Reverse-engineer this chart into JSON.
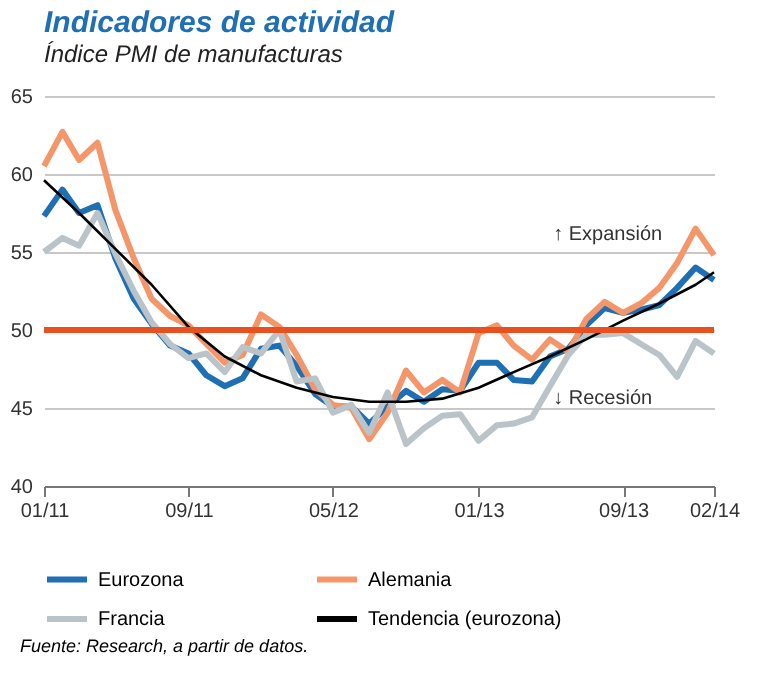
{
  "chart_data": {
    "type": "line",
    "title": "Indicadores de actividad",
    "subtitle": "Índice PMI de manufacturas",
    "x": [
      "2011-01",
      "2011-02",
      "2011-03",
      "2011-04",
      "2011-05",
      "2011-06",
      "2011-07",
      "2011-08",
      "2011-09",
      "2011-10",
      "2011-11",
      "2011-12",
      "2012-01",
      "2012-02",
      "2012-03",
      "2012-04",
      "2012-05",
      "2012-06",
      "2012-07",
      "2012-08",
      "2012-09",
      "2012-10",
      "2012-11",
      "2012-12",
      "2013-01",
      "2013-02",
      "2013-03",
      "2013-04",
      "2013-05",
      "2013-06",
      "2013-07",
      "2013-08",
      "2013-09",
      "2013-10",
      "2013-11",
      "2013-12",
      "2014-01",
      "2014-02"
    ],
    "series": [
      {
        "name": "Eurozona",
        "color": "#1f6fb5",
        "values": [
          57.3,
          59.0,
          57.5,
          58.0,
          54.6,
          52.0,
          50.4,
          49.0,
          48.5,
          47.1,
          46.4,
          46.9,
          48.8,
          49.0,
          47.7,
          45.9,
          45.1,
          45.1,
          44.0,
          45.1,
          46.1,
          45.4,
          46.2,
          46.1,
          47.9,
          47.9,
          46.8,
          46.7,
          48.3,
          48.8,
          50.3,
          51.4,
          51.1,
          51.3,
          51.6,
          52.7,
          54.0,
          53.2
        ]
      },
      {
        "name": "Alemania",
        "color": "#f4956a",
        "values": [
          60.5,
          62.7,
          60.9,
          62.0,
          57.7,
          54.6,
          52.0,
          50.9,
          50.3,
          49.1,
          47.9,
          48.4,
          51.0,
          50.2,
          48.4,
          46.2,
          45.2,
          45.0,
          43.0,
          44.7,
          47.4,
          46.0,
          46.8,
          46.0,
          49.8,
          50.3,
          49.0,
          48.1,
          49.4,
          48.6,
          50.7,
          51.8,
          51.1,
          51.7,
          52.7,
          54.3,
          56.5,
          54.8
        ]
      },
      {
        "name": "Francia",
        "color": "#b9c3c8",
        "values": [
          55.0,
          55.9,
          55.4,
          57.5,
          54.9,
          52.5,
          50.5,
          49.1,
          48.2,
          48.5,
          47.3,
          48.9,
          48.5,
          50.0,
          46.7,
          46.9,
          44.7,
          45.2,
          43.4,
          46.0,
          42.7,
          43.7,
          44.5,
          44.6,
          42.9,
          43.9,
          44.0,
          44.4,
          46.4,
          48.4,
          49.7,
          49.7,
          49.8,
          49.1,
          48.4,
          47.0,
          49.3,
          48.5
        ]
      },
      {
        "name": "Tendencia (eurozona)",
        "color": "#000000",
        "x": [
          "2011-01",
          "2011-03",
          "2011-05",
          "2011-07",
          "2011-09",
          "2011-11",
          "2012-01",
          "2012-03",
          "2012-05",
          "2012-07",
          "2012-09",
          "2012-11",
          "2013-01",
          "2013-03",
          "2013-05",
          "2013-07",
          "2013-09",
          "2013-11",
          "2014-01",
          "2014-02"
        ],
        "values": [
          59.6,
          57.5,
          55.2,
          52.9,
          50.2,
          48.3,
          47.1,
          46.3,
          45.7,
          45.4,
          45.4,
          45.6,
          46.3,
          47.3,
          48.3,
          49.4,
          50.6,
          51.7,
          52.9,
          53.7
        ]
      }
    ],
    "xlim": [
      "2011-01",
      "2014-02"
    ],
    "xticks": [
      {
        "value": "2011-01",
        "label": "01/11"
      },
      {
        "value": "2011-09",
        "label": "09/11"
      },
      {
        "value": "2012-05",
        "label": "05/12"
      },
      {
        "value": "2013-01",
        "label": "01/13"
      },
      {
        "value": "2013-09",
        "label": "09/13"
      },
      {
        "value": "2014-02",
        "label": "02/14"
      }
    ],
    "ylim": [
      40,
      65
    ],
    "yticks": [
      40,
      45,
      50,
      55,
      60,
      65
    ],
    "grid": "y",
    "legend": "bottom",
    "ref_lines": [
      {
        "axis": "y",
        "value": 50,
        "color": "#e8501e"
      }
    ],
    "annotations": [
      "↑ Expansión",
      "↓ Recesión",
      "Fuente: Research, a partir de datos."
    ]
  }
}
